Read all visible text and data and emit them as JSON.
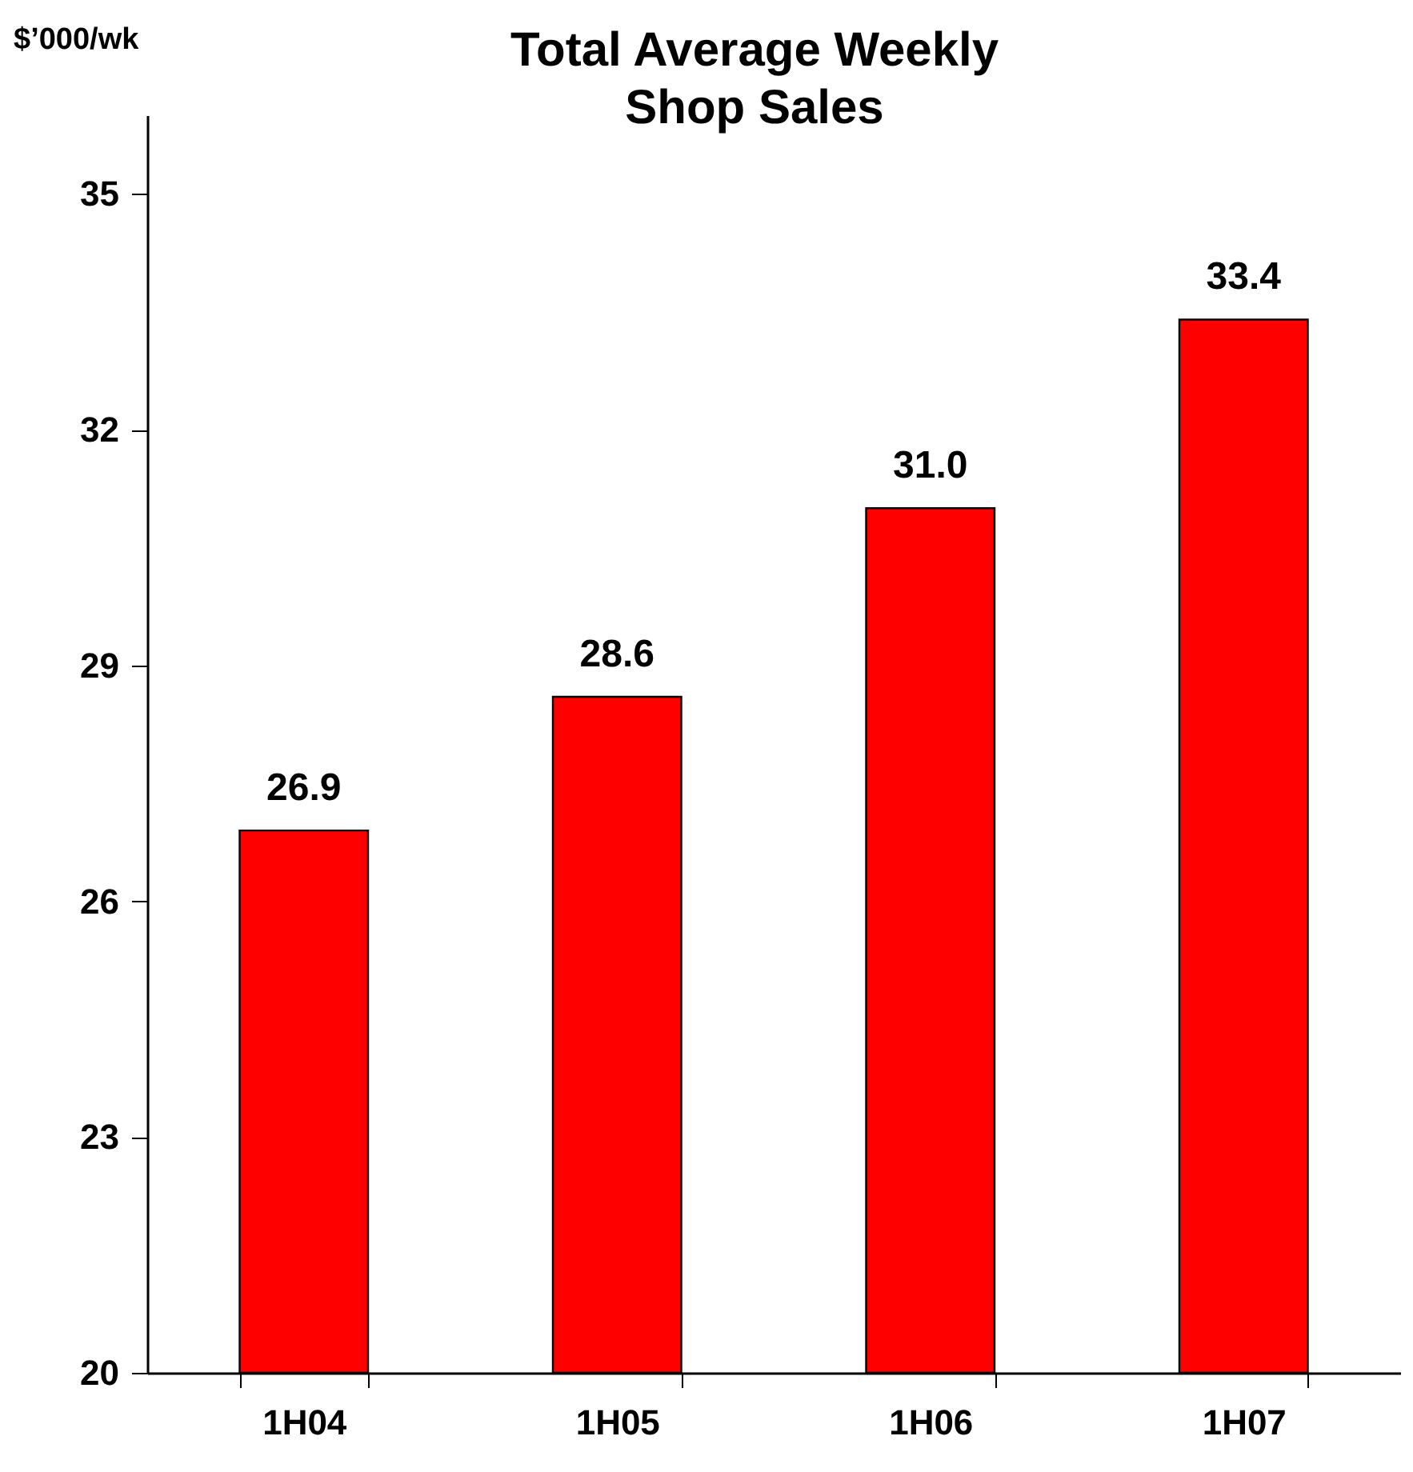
{
  "chart_data": {
    "type": "bar",
    "title": "Total Average Weekly Shop Sales",
    "ylabel": "$’000/wk",
    "categories": [
      "1H04",
      "1H05",
      "1H06",
      "1H07"
    ],
    "values": [
      26.9,
      28.6,
      31.0,
      33.4
    ],
    "value_labels": [
      "26.9",
      "28.6",
      "31.0",
      "33.4"
    ],
    "color": "#ff0000",
    "ylim": [
      20,
      36
    ],
    "yticks": [
      20,
      23,
      26,
      29,
      32,
      35
    ],
    "grid": false
  }
}
